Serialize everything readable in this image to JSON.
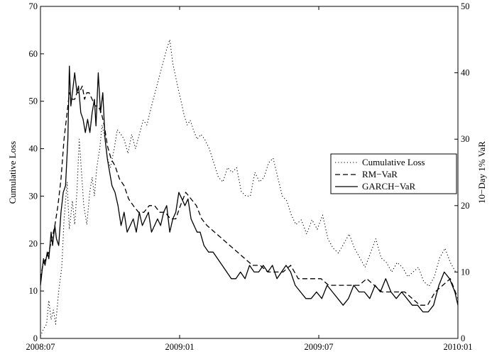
{
  "chart_data": {
    "type": "line",
    "title": "",
    "xlabel": "",
    "ylabel_left": "Cumulative Loss",
    "ylabel_right": "10−Day 1% VaR",
    "x_ticks": [
      "2008:07",
      "2009:01",
      "2009:07",
      "2010:01"
    ],
    "xlim": [
      "2008-07-01",
      "2010-01-01"
    ],
    "ylim_left": [
      0,
      70
    ],
    "yticks_left": [
      0,
      10,
      20,
      30,
      40,
      50,
      60,
      70
    ],
    "ylim_right": [
      0,
      50
    ],
    "yticks_right": [
      0,
      10,
      20,
      30,
      40,
      50
    ],
    "grid": false,
    "legend_position": "right",
    "series": [
      {
        "name": "Cumulative Loss",
        "axis": "left",
        "style": "dotted",
        "color": "#000000",
        "x": [
          "2008-07-01",
          "2008-07-05",
          "2008-07-09",
          "2008-07-12",
          "2008-07-15",
          "2008-07-18",
          "2008-07-21",
          "2008-07-25",
          "2008-07-29",
          "2008-08-01",
          "2008-08-05",
          "2008-08-08",
          "2008-08-12",
          "2008-08-15",
          "2008-08-18",
          "2008-08-21",
          "2008-08-24",
          "2008-08-27",
          "2008-08-31",
          "2008-09-04",
          "2008-09-07",
          "2008-09-10",
          "2008-09-13",
          "2008-09-17",
          "2008-09-20",
          "2008-09-24",
          "2008-09-27",
          "2008-10-01",
          "2008-10-06",
          "2008-10-10",
          "2008-10-15",
          "2008-10-19",
          "2008-10-24",
          "2008-10-29",
          "2008-11-03",
          "2008-11-08",
          "2008-11-13",
          "2008-11-18",
          "2008-11-24",
          "2008-11-29",
          "2008-12-04",
          "2008-12-09",
          "2008-12-14",
          "2008-12-18",
          "2008-12-22",
          "2008-12-26",
          "2008-12-30",
          "2009-01-02",
          "2009-01-06",
          "2009-01-10",
          "2009-01-14",
          "2009-01-18",
          "2009-01-23",
          "2009-01-28",
          "2009-02-02",
          "2009-02-08",
          "2009-02-14",
          "2009-02-20",
          "2009-02-26",
          "2009-03-04",
          "2009-03-10",
          "2009-03-16",
          "2009-03-22",
          "2009-03-28",
          "2009-04-03",
          "2009-04-09",
          "2009-04-15",
          "2009-04-21",
          "2009-04-27",
          "2009-05-03",
          "2009-05-09",
          "2009-05-15",
          "2009-05-21",
          "2009-05-27",
          "2009-06-02",
          "2009-06-09",
          "2009-06-16",
          "2009-06-23",
          "2009-06-30",
          "2009-07-07",
          "2009-07-14",
          "2009-07-21",
          "2009-07-28",
          "2009-08-04",
          "2009-08-11",
          "2009-08-18",
          "2009-08-25",
          "2009-09-01",
          "2009-09-08",
          "2009-09-15",
          "2009-09-22",
          "2009-09-29",
          "2009-10-06",
          "2009-10-13",
          "2009-10-20",
          "2009-10-27",
          "2009-11-03",
          "2009-11-10",
          "2009-11-17",
          "2009-11-24",
          "2009-12-01",
          "2009-12-08",
          "2009-12-15",
          "2009-12-22",
          "2009-12-29"
        ],
        "y": [
          0.5,
          2,
          3,
          8,
          4,
          6,
          3,
          10,
          15,
          25,
          33,
          23,
          29,
          24,
          31,
          42,
          35,
          28,
          24,
          31,
          34,
          30,
          36,
          40,
          45,
          42,
          38,
          36,
          40,
          44,
          43,
          42,
          39,
          43,
          40,
          43,
          46,
          45,
          49,
          52,
          55,
          58,
          61,
          63,
          58,
          55,
          52,
          50,
          47,
          45,
          46,
          44,
          42,
          43,
          42,
          40,
          37,
          34,
          33,
          36,
          35,
          36,
          31,
          30,
          30,
          35,
          33,
          34,
          37,
          38,
          34,
          30,
          29,
          26,
          24,
          25,
          22,
          25,
          23,
          26,
          21,
          19,
          18,
          20,
          22,
          19,
          17,
          15,
          18,
          21,
          17,
          16,
          14,
          16,
          15,
          13,
          14,
          15,
          12,
          11,
          13,
          17,
          19,
          16,
          14
        ]
      },
      {
        "name": "RM−VaR",
        "axis": "right",
        "style": "dashed",
        "color": "#000000",
        "x": [
          "2008-07-01",
          "2008-07-04",
          "2008-07-08",
          "2008-07-12",
          "2008-07-16",
          "2008-07-20",
          "2008-07-24",
          "2008-07-28",
          "2008-08-01",
          "2008-08-05",
          "2008-08-08",
          "2008-08-12",
          "2008-08-15",
          "2008-08-18",
          "2008-08-21",
          "2008-08-25",
          "2008-08-28",
          "2008-08-31",
          "2008-09-03",
          "2008-09-07",
          "2008-09-11",
          "2008-09-15",
          "2008-09-19",
          "2008-09-23",
          "2008-09-27",
          "2008-10-02",
          "2008-10-07",
          "2008-10-13",
          "2008-10-19",
          "2008-10-25",
          "2008-10-31",
          "2008-11-07",
          "2008-11-14",
          "2008-11-21",
          "2008-11-28",
          "2008-12-05",
          "2008-12-12",
          "2008-12-19",
          "2008-12-26",
          "2009-01-01",
          "2009-01-08",
          "2009-01-15",
          "2009-01-22",
          "2009-01-29",
          "2009-02-05",
          "2009-02-15",
          "2009-02-25",
          "2009-03-07",
          "2009-03-17",
          "2009-03-27",
          "2009-04-06",
          "2009-04-16",
          "2009-04-26",
          "2009-05-06",
          "2009-05-16",
          "2009-05-26",
          "2009-06-05",
          "2009-06-15",
          "2009-06-25",
          "2009-07-05",
          "2009-07-15",
          "2009-07-25",
          "2009-08-04",
          "2009-08-14",
          "2009-08-24",
          "2009-09-03",
          "2009-09-13",
          "2009-09-23",
          "2009-10-03",
          "2009-10-13",
          "2009-10-23",
          "2009-11-02",
          "2009-11-12",
          "2009-11-22",
          "2009-12-02",
          "2009-12-12",
          "2009-12-22",
          "2010-01-01"
        ],
        "y": [
          9,
          11,
          12,
          13,
          15,
          17,
          20,
          24,
          30,
          34,
          37,
          36,
          36,
          37,
          37,
          38,
          36,
          37,
          37,
          36,
          35,
          35,
          34,
          32,
          29,
          27,
          26,
          24,
          23,
          21,
          20,
          19,
          19,
          20,
          20,
          19,
          19,
          18,
          18,
          20,
          22,
          21,
          20,
          18,
          17,
          16,
          15,
          14,
          13,
          12,
          11,
          11,
          10,
          10,
          10,
          11,
          9,
          9,
          9,
          9,
          8,
          8,
          8,
          8,
          8,
          9,
          8,
          7,
          7,
          7,
          7,
          6,
          5,
          5,
          7,
          8,
          9,
          6
        ]
      },
      {
        "name": "GARCH−VaR",
        "axis": "right",
        "style": "solid",
        "color": "#000000",
        "x": [
          "2008-07-01",
          "2008-07-03",
          "2008-07-05",
          "2008-07-07",
          "2008-07-10",
          "2008-07-12",
          "2008-07-15",
          "2008-07-17",
          "2008-07-20",
          "2008-07-22",
          "2008-07-25",
          "2008-07-28",
          "2008-07-31",
          "2008-08-03",
          "2008-08-06",
          "2008-08-08",
          "2008-08-10",
          "2008-08-13",
          "2008-08-15",
          "2008-08-18",
          "2008-08-20",
          "2008-08-23",
          "2008-08-26",
          "2008-08-29",
          "2008-09-01",
          "2008-09-04",
          "2008-09-07",
          "2008-09-10",
          "2008-09-12",
          "2008-09-15",
          "2008-09-18",
          "2008-09-21",
          "2008-09-24",
          "2008-09-27",
          "2008-09-30",
          "2008-10-03",
          "2008-10-07",
          "2008-10-11",
          "2008-10-15",
          "2008-10-19",
          "2008-10-23",
          "2008-10-27",
          "2008-10-31",
          "2008-11-04",
          "2008-11-08",
          "2008-11-12",
          "2008-11-16",
          "2008-11-20",
          "2008-11-24",
          "2008-11-28",
          "2008-12-02",
          "2008-12-06",
          "2008-12-10",
          "2008-12-14",
          "2008-12-18",
          "2008-12-22",
          "2008-12-26",
          "2008-12-30",
          "2009-01-03",
          "2009-01-07",
          "2009-01-11",
          "2009-01-15",
          "2009-01-19",
          "2009-01-23",
          "2009-01-27",
          "2009-02-01",
          "2009-02-07",
          "2009-02-13",
          "2009-02-19",
          "2009-02-25",
          "2009-03-03",
          "2009-03-09",
          "2009-03-15",
          "2009-03-21",
          "2009-03-27",
          "2009-04-02",
          "2009-04-08",
          "2009-04-14",
          "2009-04-20",
          "2009-04-26",
          "2009-05-02",
          "2009-05-08",
          "2009-05-14",
          "2009-05-20",
          "2009-05-26",
          "2009-06-01",
          "2009-06-08",
          "2009-06-15",
          "2009-06-22",
          "2009-06-29",
          "2009-07-06",
          "2009-07-13",
          "2009-07-20",
          "2009-07-27",
          "2009-08-03",
          "2009-08-10",
          "2009-08-17",
          "2009-08-24",
          "2009-08-31",
          "2009-09-07",
          "2009-09-14",
          "2009-09-21",
          "2009-09-28",
          "2009-10-05",
          "2009-10-12",
          "2009-10-19",
          "2009-10-26",
          "2009-11-02",
          "2009-11-09",
          "2009-11-16",
          "2009-11-23",
          "2009-11-30",
          "2009-12-07",
          "2009-12-14",
          "2009-12-21",
          "2009-12-28",
          "2010-01-01"
        ],
        "y": [
          8,
          10,
          12,
          11,
          13,
          12,
          16,
          14,
          17,
          15,
          14,
          19,
          22,
          23,
          30,
          41,
          35,
          38,
          40,
          37,
          38,
          34,
          33,
          31,
          33,
          31,
          34,
          36,
          32,
          40,
          34,
          37,
          30,
          27,
          25,
          23,
          22,
          20,
          17,
          19,
          16,
          17,
          18,
          16,
          19,
          17,
          18,
          19,
          16,
          17,
          18,
          17,
          19,
          20,
          16,
          18,
          19,
          22,
          21,
          20,
          21,
          18,
          17,
          16,
          16,
          14,
          13,
          13,
          12,
          11,
          10,
          9,
          9,
          10,
          9,
          11,
          10,
          10,
          11,
          10,
          11,
          9,
          10,
          11,
          10,
          8,
          7,
          6,
          6,
          7,
          6,
          8,
          7,
          6,
          5,
          6,
          8,
          7,
          7,
          6,
          8,
          7,
          9,
          7,
          6,
          7,
          6,
          5,
          5,
          4,
          4,
          5,
          8,
          10,
          9,
          7,
          5
        ]
      }
    ]
  }
}
